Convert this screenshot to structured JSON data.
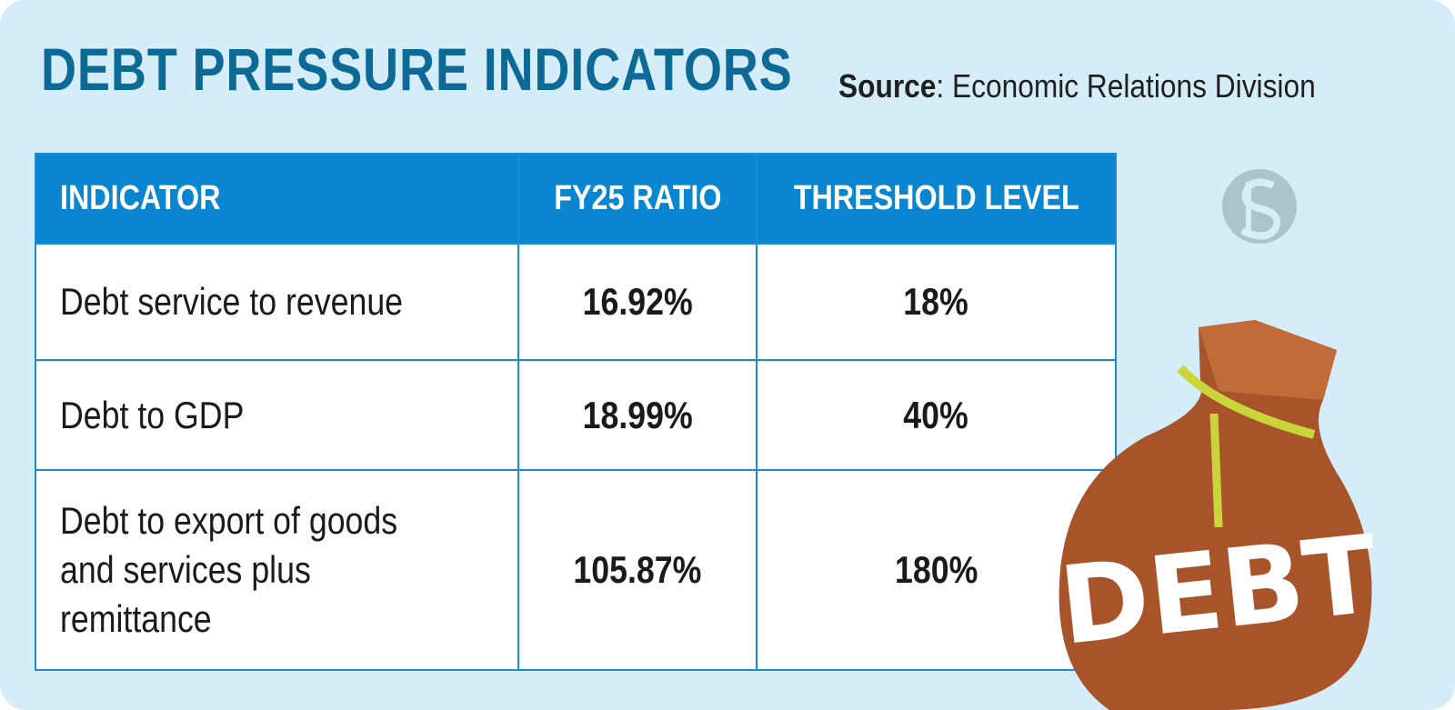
{
  "header": {
    "title": "DEBT PRESSURE INDICATORS",
    "source": {
      "label": "Source",
      "text": ": Economic Relations Division"
    }
  },
  "table": {
    "columns": [
      "INDICATOR",
      "FY25 RATIO",
      "THRESHOLD LEVEL"
    ],
    "rows": [
      [
        "Debt service to revenue",
        "16.92%",
        "18%"
      ],
      [
        "Debt to GDP",
        "18.99%",
        "40%"
      ],
      [
        "Debt to export of goods and services plus remittance",
        "105.87%",
        "180%"
      ]
    ]
  },
  "illustration": {
    "label": "DEBT"
  }
}
